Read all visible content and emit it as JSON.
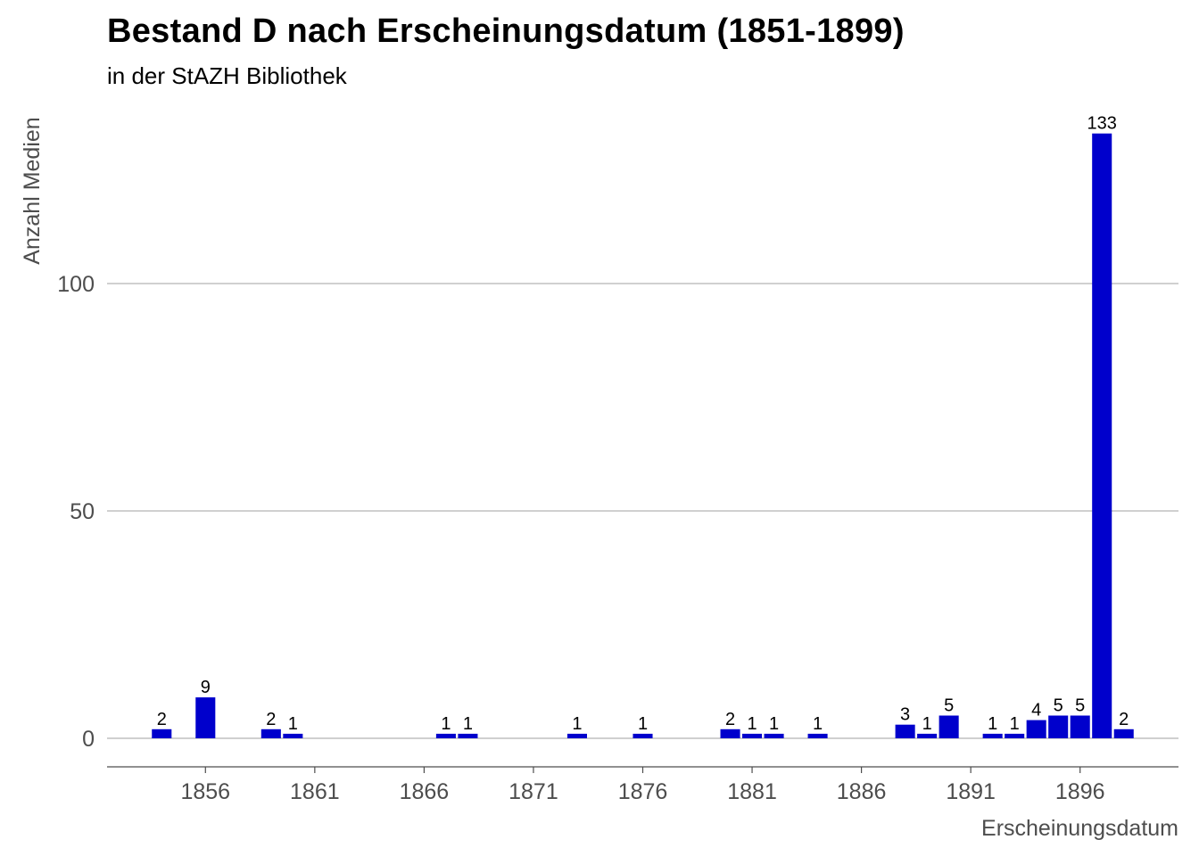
{
  "title": "Bestand D nach Erscheinungsdatum (1851-1899)",
  "subtitle": "in der StAZH Bibliothek",
  "colors": {
    "bar": "#0000CC",
    "grid": "#b3b3b3",
    "axis": "#4d4d4d",
    "text": "#4d4d4d"
  },
  "chart_data": {
    "type": "bar",
    "title": "Bestand D nach Erscheinungsdatum (1851-1899)",
    "subtitle": "in der StAZH Bibliothek",
    "xlabel": "Erscheinungsdatum",
    "ylabel": "Anzahl Medien",
    "xlim": [
      1851.5,
      1900.5
    ],
    "ylim": [
      0,
      137
    ],
    "xticks": [
      1856,
      1861,
      1866,
      1871,
      1876,
      1881,
      1886,
      1891,
      1896
    ],
    "yticks": [
      0,
      50,
      100
    ],
    "grid": "horizontal",
    "x": [
      1854,
      1856,
      1859,
      1860,
      1867,
      1868,
      1873,
      1876,
      1880,
      1881,
      1882,
      1884,
      1888,
      1889,
      1890,
      1892,
      1893,
      1894,
      1895,
      1896,
      1897,
      1898
    ],
    "values": [
      2,
      9,
      2,
      1,
      1,
      1,
      1,
      1,
      2,
      1,
      1,
      1,
      3,
      1,
      5,
      1,
      1,
      4,
      5,
      5,
      133,
      2
    ]
  }
}
